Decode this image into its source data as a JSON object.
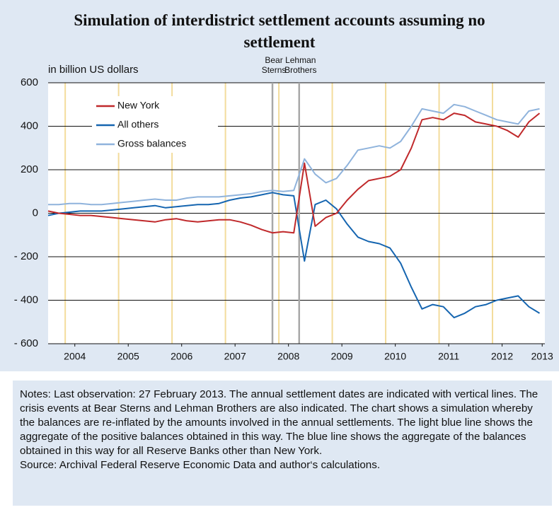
{
  "chart_data": {
    "type": "line",
    "title": "Simulation of interdistrict settlement accounts assuming no settlement",
    "y_axis_label": "in billion US dollars",
    "x": [
      2004.0,
      2004.2,
      2004.4,
      2004.6,
      2004.8,
      2005.0,
      2005.2,
      2005.4,
      2005.6,
      2005.8,
      2006.0,
      2006.2,
      2006.4,
      2006.6,
      2006.8,
      2007.0,
      2007.2,
      2007.4,
      2007.6,
      2007.8,
      2008.0,
      2008.2,
      2008.4,
      2008.6,
      2008.8,
      2009.0,
      2009.2,
      2009.4,
      2009.6,
      2009.8,
      2010.0,
      2010.2,
      2010.4,
      2010.6,
      2010.8,
      2011.0,
      2011.2,
      2011.4,
      2011.6,
      2011.8,
      2012.0,
      2012.2,
      2012.4,
      2012.6,
      2012.8,
      2013.0,
      2013.2
    ],
    "series": [
      {
        "name": "New York",
        "color": "#c0292b",
        "values": [
          10,
          0,
          -5,
          -10,
          -10,
          -15,
          -20,
          -25,
          -30,
          -35,
          -40,
          -30,
          -25,
          -35,
          -40,
          -35,
          -30,
          -30,
          -40,
          -55,
          -75,
          -90,
          -85,
          -90,
          230,
          -60,
          -20,
          0,
          60,
          110,
          150,
          160,
          170,
          200,
          300,
          430,
          440,
          430,
          460,
          450,
          420,
          410,
          400,
          380,
          350,
          420,
          460
        ]
      },
      {
        "name": "All others",
        "color": "#1565b0",
        "values": [
          -10,
          0,
          5,
          10,
          10,
          10,
          15,
          20,
          25,
          30,
          35,
          25,
          30,
          35,
          40,
          40,
          45,
          60,
          70,
          75,
          85,
          95,
          85,
          80,
          -220,
          40,
          60,
          20,
          -50,
          -110,
          -130,
          -140,
          -160,
          -230,
          -340,
          -440,
          -420,
          -430,
          -480,
          -460,
          -430,
          -420,
          -400,
          -390,
          -380,
          -430,
          -460
        ]
      },
      {
        "name": "Gross balances",
        "color": "#8fb3dc",
        "values": [
          40,
          40,
          45,
          45,
          40,
          40,
          45,
          50,
          55,
          60,
          65,
          60,
          60,
          70,
          75,
          75,
          75,
          80,
          85,
          90,
          100,
          105,
          100,
          105,
          250,
          180,
          140,
          160,
          220,
          290,
          300,
          310,
          300,
          330,
          400,
          480,
          470,
          460,
          500,
          490,
          470,
          450,
          430,
          420,
          410,
          470,
          480
        ]
      }
    ],
    "xlim": [
      2004.0,
      2013.3
    ],
    "xticks": [
      {
        "value": 2004.5,
        "label": "2004"
      },
      {
        "value": 2005.5,
        "label": "2005"
      },
      {
        "value": 2006.5,
        "label": "2006"
      },
      {
        "value": 2007.5,
        "label": "2007"
      },
      {
        "value": 2008.5,
        "label": "2008"
      },
      {
        "value": 2009.5,
        "label": "2009"
      },
      {
        "value": 2010.5,
        "label": "2010"
      },
      {
        "value": 2011.5,
        "label": "2011"
      },
      {
        "value": 2012.5,
        "label": "2012"
      },
      {
        "value": 2013.25,
        "label": "2013"
      }
    ],
    "ylim": [
      -600,
      600
    ],
    "yticks": [
      {
        "value": -600,
        "label": "- 600"
      },
      {
        "value": -400,
        "label": "- 400"
      },
      {
        "value": -200,
        "label": "- 200"
      },
      0,
      200,
      400,
      600
    ],
    "grid": true,
    "legend": "upper-left",
    "settlement_lines": {
      "color": "#f3dc9c",
      "x": [
        2004.32,
        2005.32,
        2006.32,
        2007.32,
        2008.32,
        2009.32,
        2010.32,
        2011.32,
        2012.32
      ]
    },
    "events": [
      {
        "label_lines": [
          "Bear",
          "Sterns"
        ],
        "x": 2008.2,
        "color": "#a8a8a8"
      },
      {
        "label_lines": [
          "Lehman",
          "Brothers"
        ],
        "x": 2008.7,
        "color": "#a8a8a8"
      }
    ],
    "notes": "Notes: Last observation: 27 February 2013. The annual settlement dates are indicated with vertical lines. The crisis events at Bear Sterns and Lehman Brothers are also indicated. The chart shows a simulation whereby the balances are re-inflated by the amounts involved in the annual settlements. The light blue line shows the aggregate of the positive balances obtained in this way. The blue line shows the aggregate of the balances obtained in this way for all Reserve Banks other than New York.",
    "source": "Source: Archival Federal Reserve Economic Data and author‘s calculations."
  }
}
